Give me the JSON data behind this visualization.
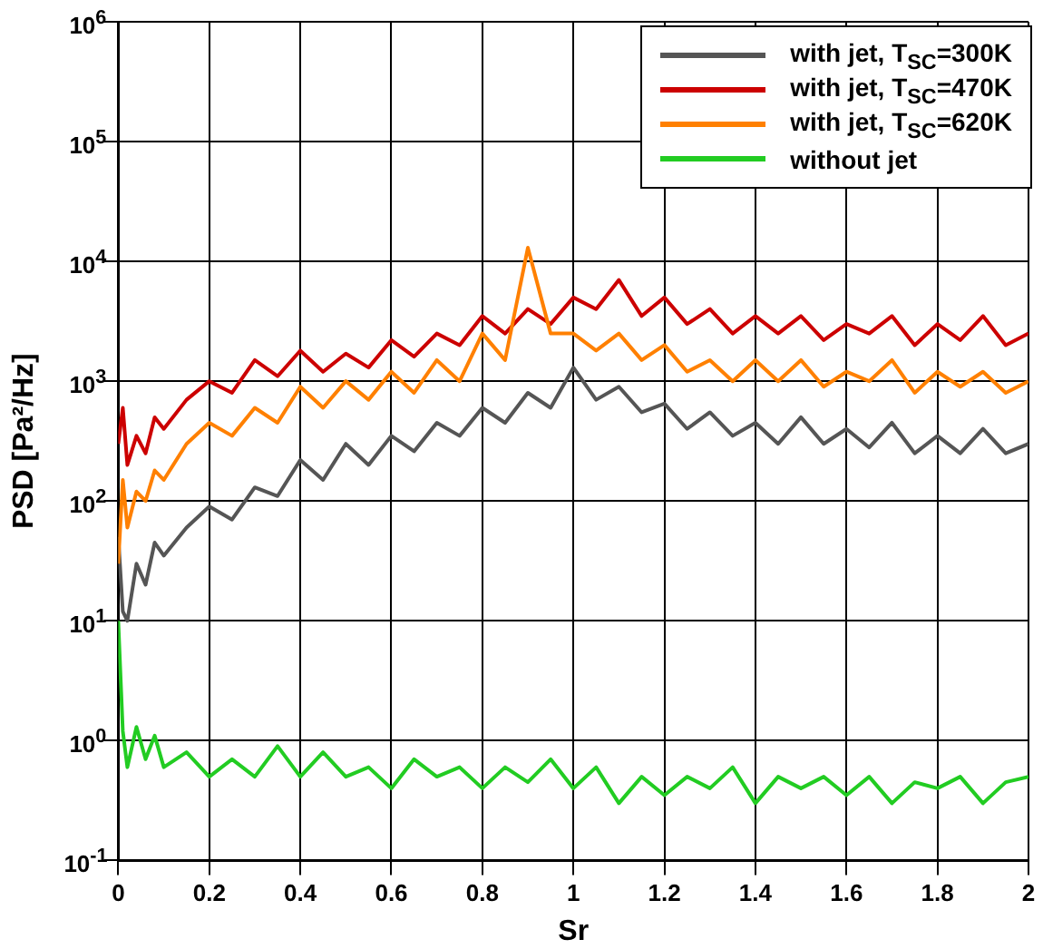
{
  "chart_data": {
    "type": "line",
    "xlabel": "Sr",
    "ylabel": "PSD [Pa²/Hz]",
    "log": "y",
    "grid": true,
    "legend": "top right",
    "marker": "none",
    "line_style": "solid",
    "x": [
      0,
      0.01,
      0.02,
      0.04,
      0.06,
      0.08,
      0.1,
      0.15,
      0.2,
      0.25,
      0.3,
      0.35,
      0.4,
      0.45,
      0.5,
      0.55,
      0.6,
      0.65,
      0.7,
      0.75,
      0.8,
      0.85,
      0.9,
      0.95,
      1.0,
      1.05,
      1.1,
      1.15,
      1.2,
      1.25,
      1.3,
      1.35,
      1.4,
      1.45,
      1.5,
      1.55,
      1.6,
      1.65,
      1.7,
      1.75,
      1.8,
      1.85,
      1.9,
      1.95,
      2.0
    ],
    "xlim": [
      0,
      2
    ],
    "xticks": [
      0,
      0.2,
      0.4,
      0.6,
      0.8,
      1,
      1.2,
      1.4,
      1.6,
      1.8,
      2
    ],
    "ylim": [
      0.1,
      1000000
    ],
    "yticks": [
      {
        "value": 0.1,
        "label": "10$^{-1}$"
      },
      {
        "value": 1,
        "label": "10$^{0}$"
      },
      {
        "value": 10,
        "label": "10$^{1}$"
      },
      {
        "value": 100,
        "label": "10$^{2}$"
      },
      {
        "value": 1000,
        "label": "10$^{3}$"
      },
      {
        "value": 10000,
        "label": "10$^{4}$"
      },
      {
        "value": 100000,
        "label": "10$^{5}$"
      },
      {
        "value": 1000000,
        "label": "10$^{6}$"
      }
    ],
    "series": [
      {
        "name": "with jet, T$_{SC}$=300K",
        "color": "#555555",
        "values": [
          50,
          12,
          10,
          30,
          20,
          45,
          35,
          60,
          90,
          70,
          130,
          110,
          220,
          150,
          300,
          200,
          350,
          260,
          450,
          350,
          600,
          450,
          800,
          600,
          1300,
          700,
          900,
          550,
          650,
          400,
          550,
          350,
          450,
          300,
          500,
          300,
          400,
          280,
          450,
          250,
          350,
          250,
          400,
          250,
          300
        ]
      },
      {
        "name": "with jet, T$_{SC}$=470K",
        "color": "#cc0000",
        "values": [
          300,
          600,
          200,
          350,
          250,
          500,
          400,
          700,
          1000,
          800,
          1500,
          1100,
          1800,
          1200,
          1700,
          1300,
          2200,
          1600,
          2500,
          2000,
          3500,
          2500,
          4000,
          3000,
          5000,
          4000,
          7000,
          3500,
          5000,
          3000,
          4000,
          2500,
          3500,
          2500,
          3500,
          2200,
          3000,
          2500,
          3500,
          2000,
          3000,
          2200,
          3500,
          2000,
          2500
        ]
      },
      {
        "name": "with jet, T$_{SC}$=620K",
        "color": "#ff8000",
        "values": [
          30,
          150,
          60,
          120,
          100,
          180,
          150,
          300,
          450,
          350,
          600,
          450,
          900,
          600,
          1000,
          700,
          1200,
          800,
          1500,
          1000,
          2500,
          1500,
          13000,
          2500,
          2500,
          1800,
          2500,
          1500,
          2000,
          1200,
          1500,
          1000,
          1500,
          1000,
          1500,
          900,
          1200,
          1000,
          1500,
          800,
          1200,
          900,
          1200,
          800,
          1000
        ]
      },
      {
        "name": "without jet",
        "color": "#22cc22",
        "values": [
          10,
          1.2,
          0.6,
          1.3,
          0.7,
          1.1,
          0.6,
          0.8,
          0.5,
          0.7,
          0.5,
          0.9,
          0.5,
          0.8,
          0.5,
          0.6,
          0.4,
          0.7,
          0.5,
          0.6,
          0.4,
          0.6,
          0.45,
          0.7,
          0.4,
          0.6,
          0.3,
          0.5,
          0.35,
          0.5,
          0.4,
          0.6,
          0.3,
          0.5,
          0.4,
          0.5,
          0.35,
          0.5,
          0.3,
          0.45,
          0.4,
          0.5,
          0.3,
          0.45,
          0.5
        ]
      }
    ]
  }
}
